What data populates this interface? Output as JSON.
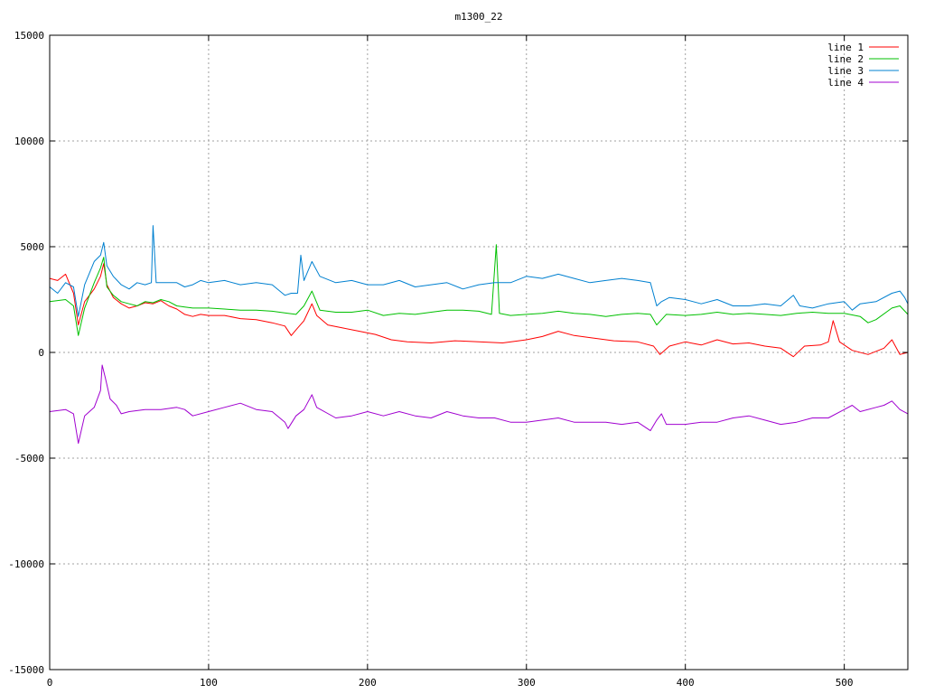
{
  "chart_data": {
    "type": "line",
    "title": "m1300_22",
    "xlabel": "",
    "ylabel": "",
    "xlim": [
      0,
      540
    ],
    "ylim": [
      -15000,
      15000
    ],
    "x_ticks": [
      0,
      100,
      200,
      300,
      400,
      500
    ],
    "y_ticks": [
      -15000,
      -10000,
      -5000,
      0,
      5000,
      10000,
      15000
    ],
    "grid": true,
    "legend_position": "top-right",
    "series": [
      {
        "name": "line 1",
        "color": "#ff0000",
        "points": [
          [
            0,
            3500
          ],
          [
            5,
            3400
          ],
          [
            10,
            3700
          ],
          [
            15,
            2800
          ],
          [
            18,
            1300
          ],
          [
            22,
            2400
          ],
          [
            28,
            3000
          ],
          [
            32,
            3600
          ],
          [
            34,
            4200
          ],
          [
            36,
            3200
          ],
          [
            40,
            2600
          ],
          [
            45,
            2300
          ],
          [
            50,
            2100
          ],
          [
            55,
            2200
          ],
          [
            60,
            2350
          ],
          [
            65,
            2300
          ],
          [
            70,
            2450
          ],
          [
            75,
            2200
          ],
          [
            80,
            2050
          ],
          [
            85,
            1800
          ],
          [
            90,
            1700
          ],
          [
            95,
            1800
          ],
          [
            100,
            1750
          ],
          [
            110,
            1750
          ],
          [
            120,
            1600
          ],
          [
            130,
            1550
          ],
          [
            140,
            1400
          ],
          [
            148,
            1250
          ],
          [
            152,
            800
          ],
          [
            156,
            1150
          ],
          [
            160,
            1500
          ],
          [
            165,
            2300
          ],
          [
            168,
            1750
          ],
          [
            175,
            1300
          ],
          [
            185,
            1150
          ],
          [
            195,
            1000
          ],
          [
            205,
            850
          ],
          [
            215,
            600
          ],
          [
            225,
            500
          ],
          [
            240,
            450
          ],
          [
            255,
            550
          ],
          [
            270,
            500
          ],
          [
            285,
            450
          ],
          [
            300,
            600
          ],
          [
            310,
            750
          ],
          [
            320,
            1000
          ],
          [
            330,
            800
          ],
          [
            340,
            700
          ],
          [
            355,
            550
          ],
          [
            370,
            500
          ],
          [
            380,
            300
          ],
          [
            384,
            -100
          ],
          [
            390,
            300
          ],
          [
            400,
            500
          ],
          [
            410,
            350
          ],
          [
            420,
            600
          ],
          [
            430,
            400
          ],
          [
            440,
            450
          ],
          [
            450,
            300
          ],
          [
            460,
            200
          ],
          [
            468,
            -200
          ],
          [
            475,
            300
          ],
          [
            485,
            350
          ],
          [
            490,
            500
          ],
          [
            493,
            1500
          ],
          [
            497,
            500
          ],
          [
            505,
            100
          ],
          [
            515,
            -100
          ],
          [
            525,
            200
          ],
          [
            530,
            600
          ],
          [
            535,
            -100
          ],
          [
            540,
            0
          ]
        ]
      },
      {
        "name": "line 2",
        "color": "#00c000",
        "points": [
          [
            0,
            2400
          ],
          [
            10,
            2500
          ],
          [
            15,
            2200
          ],
          [
            18,
            800
          ],
          [
            22,
            2100
          ],
          [
            28,
            3300
          ],
          [
            32,
            4000
          ],
          [
            34,
            4500
          ],
          [
            36,
            3100
          ],
          [
            40,
            2700
          ],
          [
            45,
            2400
          ],
          [
            50,
            2300
          ],
          [
            55,
            2200
          ],
          [
            60,
            2400
          ],
          [
            65,
            2350
          ],
          [
            70,
            2500
          ],
          [
            75,
            2400
          ],
          [
            80,
            2200
          ],
          [
            85,
            2150
          ],
          [
            90,
            2100
          ],
          [
            100,
            2100
          ],
          [
            110,
            2050
          ],
          [
            120,
            2000
          ],
          [
            130,
            2000
          ],
          [
            140,
            1950
          ],
          [
            150,
            1850
          ],
          [
            155,
            1800
          ],
          [
            160,
            2200
          ],
          [
            165,
            2900
          ],
          [
            170,
            2000
          ],
          [
            180,
            1900
          ],
          [
            190,
            1900
          ],
          [
            200,
            2000
          ],
          [
            210,
            1750
          ],
          [
            220,
            1850
          ],
          [
            230,
            1800
          ],
          [
            240,
            1900
          ],
          [
            250,
            2000
          ],
          [
            260,
            2000
          ],
          [
            270,
            1950
          ],
          [
            278,
            1800
          ],
          [
            281,
            5100
          ],
          [
            283,
            1850
          ],
          [
            290,
            1750
          ],
          [
            300,
            1800
          ],
          [
            310,
            1850
          ],
          [
            320,
            1950
          ],
          [
            330,
            1850
          ],
          [
            340,
            1800
          ],
          [
            350,
            1700
          ],
          [
            360,
            1800
          ],
          [
            370,
            1850
          ],
          [
            378,
            1800
          ],
          [
            382,
            1300
          ],
          [
            388,
            1800
          ],
          [
            400,
            1750
          ],
          [
            410,
            1800
          ],
          [
            420,
            1900
          ],
          [
            430,
            1800
          ],
          [
            440,
            1850
          ],
          [
            450,
            1800
          ],
          [
            460,
            1750
          ],
          [
            470,
            1850
          ],
          [
            480,
            1900
          ],
          [
            490,
            1850
          ],
          [
            500,
            1850
          ],
          [
            510,
            1700
          ],
          [
            515,
            1400
          ],
          [
            520,
            1550
          ],
          [
            530,
            2100
          ],
          [
            535,
            2200
          ],
          [
            540,
            1800
          ]
        ]
      },
      {
        "name": "line 3",
        "color": "#0080d0",
        "points": [
          [
            0,
            3100
          ],
          [
            5,
            2800
          ],
          [
            10,
            3300
          ],
          [
            15,
            3100
          ],
          [
            18,
            1700
          ],
          [
            22,
            3200
          ],
          [
            28,
            4300
          ],
          [
            32,
            4600
          ],
          [
            34,
            5200
          ],
          [
            36,
            4100
          ],
          [
            40,
            3600
          ],
          [
            45,
            3200
          ],
          [
            50,
            3000
          ],
          [
            55,
            3300
          ],
          [
            60,
            3200
          ],
          [
            64,
            3300
          ],
          [
            65,
            6000
          ],
          [
            67,
            3300
          ],
          [
            70,
            3300
          ],
          [
            80,
            3300
          ],
          [
            85,
            3100
          ],
          [
            90,
            3200
          ],
          [
            95,
            3400
          ],
          [
            100,
            3300
          ],
          [
            110,
            3400
          ],
          [
            120,
            3200
          ],
          [
            130,
            3300
          ],
          [
            140,
            3200
          ],
          [
            148,
            2700
          ],
          [
            152,
            2800
          ],
          [
            156,
            2800
          ],
          [
            158,
            4600
          ],
          [
            160,
            3400
          ],
          [
            165,
            4300
          ],
          [
            170,
            3600
          ],
          [
            180,
            3300
          ],
          [
            190,
            3400
          ],
          [
            200,
            3200
          ],
          [
            210,
            3200
          ],
          [
            220,
            3400
          ],
          [
            230,
            3100
          ],
          [
            240,
            3200
          ],
          [
            250,
            3300
          ],
          [
            260,
            3000
          ],
          [
            270,
            3200
          ],
          [
            280,
            3300
          ],
          [
            290,
            3300
          ],
          [
            300,
            3600
          ],
          [
            310,
            3500
          ],
          [
            320,
            3700
          ],
          [
            330,
            3500
          ],
          [
            340,
            3300
          ],
          [
            350,
            3400
          ],
          [
            360,
            3500
          ],
          [
            370,
            3400
          ],
          [
            378,
            3300
          ],
          [
            382,
            2200
          ],
          [
            385,
            2400
          ],
          [
            390,
            2600
          ],
          [
            400,
            2500
          ],
          [
            410,
            2300
          ],
          [
            420,
            2500
          ],
          [
            430,
            2200
          ],
          [
            440,
            2200
          ],
          [
            450,
            2300
          ],
          [
            460,
            2200
          ],
          [
            468,
            2700
          ],
          [
            472,
            2200
          ],
          [
            480,
            2100
          ],
          [
            490,
            2300
          ],
          [
            500,
            2400
          ],
          [
            505,
            2000
          ],
          [
            510,
            2300
          ],
          [
            520,
            2400
          ],
          [
            530,
            2800
          ],
          [
            535,
            2900
          ],
          [
            538,
            2600
          ],
          [
            540,
            2300
          ]
        ]
      },
      {
        "name": "line 4",
        "color": "#a000d0",
        "points": [
          [
            0,
            -2800
          ],
          [
            10,
            -2700
          ],
          [
            15,
            -2900
          ],
          [
            18,
            -4300
          ],
          [
            22,
            -3000
          ],
          [
            28,
            -2600
          ],
          [
            32,
            -1800
          ],
          [
            33,
            -600
          ],
          [
            35,
            -1200
          ],
          [
            38,
            -2200
          ],
          [
            42,
            -2500
          ],
          [
            45,
            -2900
          ],
          [
            50,
            -2800
          ],
          [
            60,
            -2700
          ],
          [
            70,
            -2700
          ],
          [
            80,
            -2600
          ],
          [
            85,
            -2700
          ],
          [
            90,
            -3000
          ],
          [
            100,
            -2800
          ],
          [
            110,
            -2600
          ],
          [
            120,
            -2400
          ],
          [
            130,
            -2700
          ],
          [
            140,
            -2800
          ],
          [
            148,
            -3300
          ],
          [
            150,
            -3600
          ],
          [
            155,
            -3000
          ],
          [
            160,
            -2700
          ],
          [
            165,
            -2000
          ],
          [
            168,
            -2600
          ],
          [
            180,
            -3100
          ],
          [
            190,
            -3000
          ],
          [
            200,
            -2800
          ],
          [
            210,
            -3000
          ],
          [
            220,
            -2800
          ],
          [
            230,
            -3000
          ],
          [
            240,
            -3100
          ],
          [
            250,
            -2800
          ],
          [
            260,
            -3000
          ],
          [
            270,
            -3100
          ],
          [
            280,
            -3100
          ],
          [
            290,
            -3300
          ],
          [
            300,
            -3300
          ],
          [
            310,
            -3200
          ],
          [
            320,
            -3100
          ],
          [
            330,
            -3300
          ],
          [
            340,
            -3300
          ],
          [
            350,
            -3300
          ],
          [
            360,
            -3400
          ],
          [
            370,
            -3300
          ],
          [
            378,
            -3700
          ],
          [
            382,
            -3200
          ],
          [
            385,
            -2900
          ],
          [
            388,
            -3400
          ],
          [
            400,
            -3400
          ],
          [
            410,
            -3300
          ],
          [
            420,
            -3300
          ],
          [
            430,
            -3100
          ],
          [
            440,
            -3000
          ],
          [
            450,
            -3200
          ],
          [
            460,
            -3400
          ],
          [
            470,
            -3300
          ],
          [
            480,
            -3100
          ],
          [
            490,
            -3100
          ],
          [
            500,
            -2700
          ],
          [
            505,
            -2500
          ],
          [
            510,
            -2800
          ],
          [
            520,
            -2600
          ],
          [
            525,
            -2500
          ],
          [
            530,
            -2300
          ],
          [
            535,
            -2700
          ],
          [
            540,
            -2900
          ]
        ]
      }
    ]
  }
}
